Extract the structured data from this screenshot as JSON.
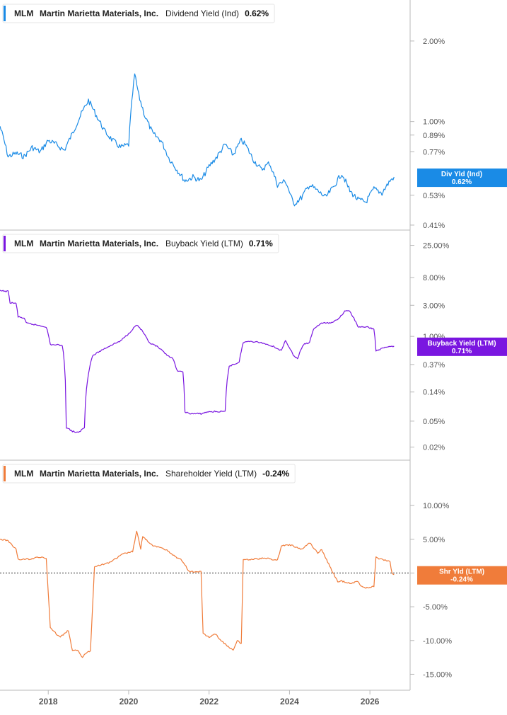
{
  "colors": {
    "dividend": "#1a8be6",
    "buyback": "#7a16e0",
    "shareholder": "#f07c3a",
    "axis": "#b8b8b8",
    "text": "#333333"
  },
  "chart_data": [
    {
      "type": "line",
      "scale": "log",
      "legend": {
        "ticker": "MLM",
        "company": "Martin Marietta Materials, Inc.",
        "metric": "Dividend Yield (Ind)",
        "value": "0.62%"
      },
      "flag": {
        "line1": "Div Yld (Ind)",
        "line2": "0.62%",
        "value": 0.62
      },
      "y_ticks": [
        {
          "label": "2.00%",
          "value": 2.0
        },
        {
          "label": "1.00%",
          "value": 1.0
        },
        {
          "label": "0.89%",
          "value": 0.89
        },
        {
          "label": "0.77%",
          "value": 0.77
        },
        {
          "label": "0.53%",
          "value": 0.53
        },
        {
          "label": "0.41%",
          "value": 0.41
        }
      ],
      "ylim": [
        0.4,
        2.4
      ],
      "series": [
        {
          "x": [
            2016.8,
            2017.0,
            2017.2,
            2017.4,
            2017.6,
            2017.8,
            2018.0,
            2018.2,
            2018.4,
            2018.6,
            2018.8,
            2019.0,
            2019.2,
            2019.4,
            2019.6,
            2019.8,
            2020.0,
            2020.15,
            2020.25,
            2020.4,
            2020.6,
            2020.8,
            2021.0,
            2021.2,
            2021.4,
            2021.6,
            2021.8,
            2022.0,
            2022.2,
            2022.4,
            2022.6,
            2022.8,
            2022.9,
            2023.1,
            2023.3,
            2023.5,
            2023.7,
            2023.9,
            2024.1,
            2024.3,
            2024.5,
            2024.7,
            2024.9,
            2025.1,
            2025.3,
            2025.5,
            2025.7,
            2025.9,
            2026.1,
            2026.3,
            2026.5,
            2026.6
          ],
          "y": [
            0.96,
            0.74,
            0.76,
            0.74,
            0.8,
            0.77,
            0.85,
            0.82,
            0.78,
            0.9,
            1.05,
            1.2,
            1.05,
            0.92,
            0.85,
            0.8,
            0.82,
            1.5,
            1.25,
            1.05,
            0.9,
            0.85,
            0.73,
            0.66,
            0.6,
            0.62,
            0.6,
            0.68,
            0.74,
            0.82,
            0.75,
            0.85,
            0.82,
            0.72,
            0.66,
            0.7,
            0.58,
            0.6,
            0.49,
            0.52,
            0.58,
            0.55,
            0.52,
            0.57,
            0.64,
            0.55,
            0.51,
            0.5,
            0.56,
            0.54,
            0.6,
            0.62
          ]
        }
      ]
    },
    {
      "type": "line",
      "scale": "log",
      "legend": {
        "ticker": "MLM",
        "company": "Martin Marietta Materials, Inc.",
        "metric": "Buyback Yield (LTM)",
        "value": "0.71%"
      },
      "flag": {
        "line1": "Buyback Yield (LTM)",
        "line2": "0.71%",
        "value": 0.71
      },
      "y_ticks": [
        {
          "label": "25.00%",
          "value": 25.0
        },
        {
          "label": "8.00%",
          "value": 8.0
        },
        {
          "label": "3.00%",
          "value": 3.0
        },
        {
          "label": "1.00%",
          "value": 1.0
        },
        {
          "label": "0.37%",
          "value": 0.37
        },
        {
          "label": "0.14%",
          "value": 0.14
        },
        {
          "label": "0.05%",
          "value": 0.05
        },
        {
          "label": "0.02%",
          "value": 0.02
        }
      ],
      "ylim": [
        0.017,
        28
      ],
      "series": [
        {
          "x": [
            2016.8,
            2017.0,
            2017.05,
            2017.2,
            2017.25,
            2017.4,
            2017.45,
            2017.7,
            2017.95,
            2018.05,
            2018.35,
            2018.45,
            2018.6,
            2018.75,
            2018.9,
            2019.1,
            2019.2,
            2019.4,
            2019.6,
            2019.8,
            2020.0,
            2020.2,
            2020.3,
            2020.5,
            2020.7,
            2020.9,
            2021.1,
            2021.2,
            2021.35,
            2021.4,
            2021.5,
            2021.8,
            2022.0,
            2022.4,
            2022.5,
            2022.6,
            2022.75,
            2022.85,
            2023.0,
            2023.3,
            2023.6,
            2023.8,
            2023.9,
            2024.1,
            2024.2,
            2024.35,
            2024.5,
            2024.6,
            2024.8,
            2025.0,
            2025.2,
            2025.4,
            2025.5,
            2025.7,
            2025.9,
            2026.1,
            2026.15,
            2026.3,
            2026.45,
            2026.6
          ],
          "y": [
            5.0,
            4.9,
            3.3,
            3.2,
            2.0,
            1.9,
            1.6,
            1.5,
            1.4,
            0.75,
            0.73,
            0.04,
            0.035,
            0.033,
            0.04,
            0.5,
            0.55,
            0.65,
            0.75,
            0.85,
            1.1,
            1.5,
            1.3,
            0.8,
            0.7,
            0.55,
            0.45,
            0.3,
            0.28,
            0.07,
            0.065,
            0.065,
            0.07,
            0.07,
            0.35,
            0.37,
            0.4,
            0.8,
            0.85,
            0.8,
            0.7,
            0.6,
            0.85,
            0.5,
            0.45,
            0.75,
            0.8,
            1.3,
            1.6,
            1.6,
            1.8,
            2.5,
            2.4,
            1.4,
            1.4,
            1.3,
            0.6,
            0.65,
            0.7,
            0.71
          ]
        }
      ]
    },
    {
      "type": "line",
      "scale": "linear",
      "legend": {
        "ticker": "MLM",
        "company": "Martin Marietta Materials, Inc.",
        "metric": "Shareholder Yield (LTM)",
        "value": "-0.24%"
      },
      "flag": {
        "line1": "Shr Yld (LTM)",
        "line2": "-0.24%",
        "value": -0.24
      },
      "y_ticks": [
        {
          "label": "10.00%",
          "value": 10.0
        },
        {
          "label": "5.00%",
          "value": 5.0
        },
        {
          "label": "0.00%",
          "value": 0.0
        },
        {
          "label": "-5.00%",
          "value": -5.0
        },
        {
          "label": "-10.00%",
          "value": -10.0
        },
        {
          "label": "-15.00%",
          "value": -15.0
        }
      ],
      "ylim": [
        -16.0,
        12.0
      ],
      "zero_line": true,
      "series": [
        {
          "x": [
            2016.8,
            2017.0,
            2017.2,
            2017.25,
            2017.6,
            2017.7,
            2017.95,
            2018.05,
            2018.1,
            2018.3,
            2018.5,
            2018.6,
            2018.75,
            2018.85,
            2018.95,
            2019.05,
            2019.15,
            2019.3,
            2019.5,
            2019.7,
            2019.85,
            2020.1,
            2020.2,
            2020.3,
            2020.35,
            2020.5,
            2020.6,
            2020.8,
            2021.0,
            2021.2,
            2021.3,
            2021.4,
            2021.5,
            2021.8,
            2021.85,
            2022.0,
            2022.15,
            2022.3,
            2022.45,
            2022.6,
            2022.7,
            2022.8,
            2022.85,
            2023.0,
            2023.4,
            2023.7,
            2023.8,
            2024.0,
            2024.3,
            2024.5,
            2024.7,
            2024.8,
            2025.0,
            2025.2,
            2025.3,
            2025.5,
            2025.7,
            2025.8,
            2025.9,
            2026.1,
            2026.15,
            2026.3,
            2026.5,
            2026.55,
            2026.6
          ],
          "y": [
            5.0,
            4.8,
            3.5,
            2.0,
            2.1,
            2.4,
            2.2,
            -8.0,
            -8.5,
            -9.5,
            -8.5,
            -11.5,
            -11.5,
            -12.5,
            -11.8,
            -11.5,
            1.0,
            1.2,
            1.5,
            2.2,
            2.8,
            3.2,
            6.2,
            3.5,
            5.5,
            4.5,
            4.0,
            3.8,
            3.2,
            2.2,
            2.0,
            1.2,
            0.2,
            0.2,
            -9.0,
            -9.5,
            -9.0,
            -10.0,
            -10.8,
            -11.5,
            -10.0,
            -10.5,
            2.0,
            2.0,
            2.2,
            1.9,
            4.0,
            4.2,
            3.5,
            4.5,
            3.0,
            3.5,
            1.0,
            -1.3,
            -1.2,
            -1.5,
            -1.3,
            -2.0,
            -2.2,
            -2.0,
            2.3,
            2.0,
            1.7,
            -0.1,
            -0.24
          ]
        }
      ]
    }
  ],
  "x_axis": {
    "ticks": [
      {
        "label": "2018",
        "value": 2018
      },
      {
        "label": "2020",
        "value": 2020
      },
      {
        "label": "2022",
        "value": 2022
      },
      {
        "label": "2024",
        "value": 2024
      },
      {
        "label": "2026",
        "value": 2026
      }
    ],
    "xlim": [
      2016.8,
      2027.0
    ]
  }
}
